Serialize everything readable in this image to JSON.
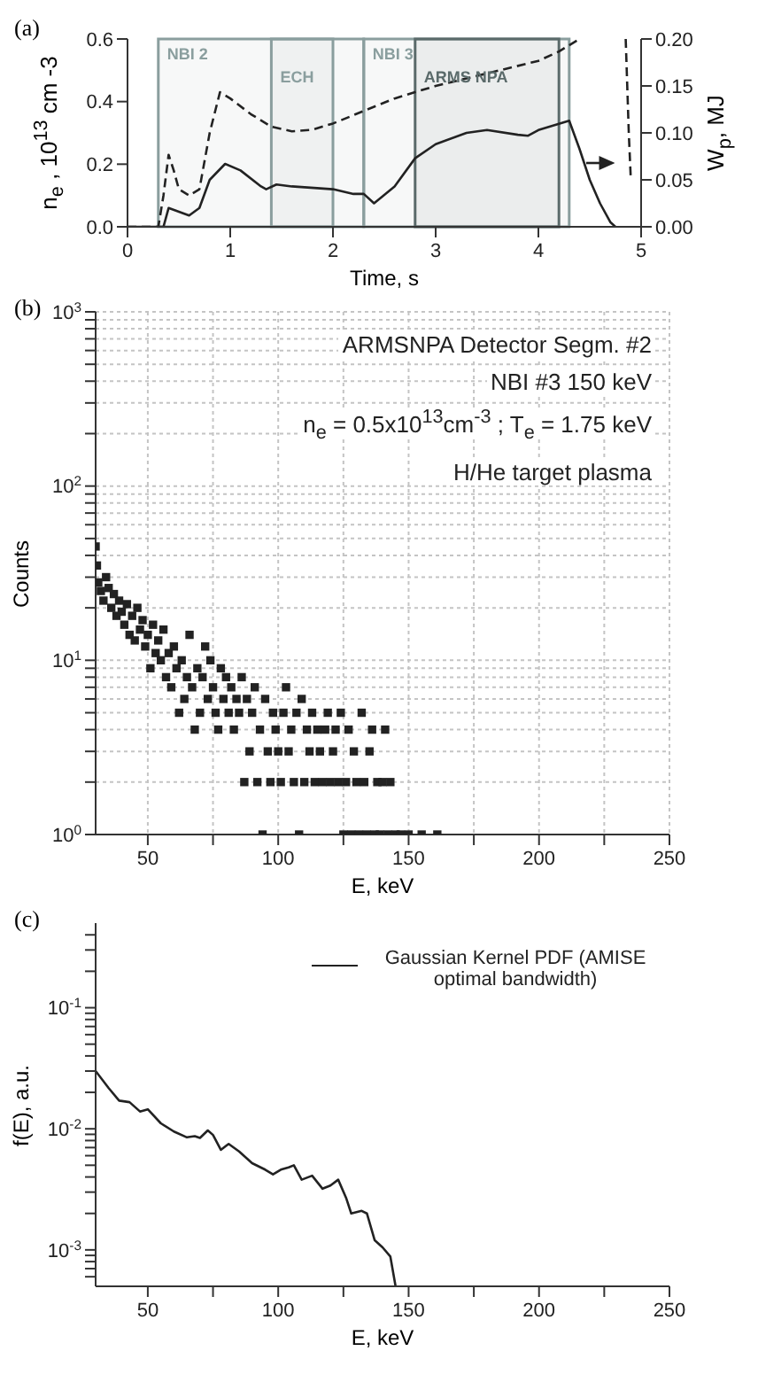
{
  "chart_data": [
    {
      "type": "line",
      "annotations": [
        "(a)"
      ],
      "xlabel": "Time, s",
      "ylabel": "n$_{e}$ , 10$^{13}$ cm -3",
      "y2label": "W$_{p}$, MJ",
      "xlim": [
        0,
        5
      ],
      "xticks": [
        0,
        1,
        2,
        3,
        4,
        5
      ],
      "ylim": [
        0,
        0.6
      ],
      "yticks": [
        {
          "value": 0,
          "label": "0.0"
        },
        0.2,
        0.4,
        0.6
      ],
      "y2lim": [
        0,
        0.2
      ],
      "y2ticks": [
        {
          "value": 0,
          "label": "0.00"
        },
        0.05,
        {
          "value": 0.1,
          "label": "0.10"
        },
        0.15,
        {
          "value": 0.2,
          "label": "0.20"
        }
      ],
      "marker": "none",
      "bands": [
        {
          "axis": "x",
          "from": 0.3,
          "to": 2.3,
          "label": "NBI 2",
          "color": "#8a9e9e"
        },
        {
          "axis": "x",
          "from": 1.4,
          "to": 2.0,
          "label": "ECH",
          "color": "#8a9e9e"
        },
        {
          "axis": "x",
          "from": 2.3,
          "to": 4.3,
          "label": "NBI 3",
          "color": "#8a9e9e"
        },
        {
          "axis": "x",
          "from": 2.8,
          "to": 4.2,
          "label": "ARMS NPA",
          "color": "#5a6a6a"
        }
      ],
      "series": [
        {
          "x": [
            0,
            0.3,
            0.35,
            0.4,
            0.45,
            0.5,
            0.6,
            0.7,
            0.8,
            0.9,
            1.0,
            1.2,
            1.4,
            1.6,
            1.8,
            2.0,
            2.3,
            2.6,
            3.0,
            3.5,
            4.0,
            4.2,
            4.4,
            4.45,
            4.85,
            4.88,
            4.9
          ],
          "values": [
            0,
            0,
            0.1,
            0.23,
            0.18,
            0.12,
            0.1,
            0.12,
            0.3,
            0.43,
            0.41,
            0.36,
            0.32,
            0.305,
            0.31,
            0.33,
            0.37,
            0.41,
            0.45,
            0.49,
            0.53,
            0.56,
            0.6,
            null,
            0.6,
            0.3,
            0.15
          ],
          "color": "#222222",
          "line_style": "dashed"
        },
        {
          "x": [
            0,
            0.35,
            0.4,
            0.6,
            0.7,
            0.8,
            0.95,
            1.1,
            1.3,
            1.35,
            1.45,
            1.6,
            2.0,
            2.2,
            2.3,
            2.4,
            2.6,
            2.8,
            3.0,
            3.3,
            3.5,
            3.8,
            3.9,
            4.0,
            4.3,
            4.4,
            4.5,
            4.6,
            4.7,
            4.75
          ],
          "values": [
            0,
            0,
            0.02,
            0.012,
            0.02,
            0.05,
            0.067,
            0.06,
            0.043,
            0.04,
            0.045,
            0.043,
            0.04,
            0.035,
            0.035,
            0.025,
            0.043,
            0.073,
            0.088,
            0.1,
            0.103,
            0.098,
            0.097,
            0.103,
            0.113,
            0.083,
            0.05,
            0.025,
            0.005,
            0
          ],
          "color": "#222222",
          "line_style": "solid",
          "axis": "y2"
        }
      ]
    },
    {
      "type": "scatter",
      "annotations": [
        "(b)",
        "ARMSNPA Detector Segm. #2",
        "NBI #3 150 keV",
        "n$_{e}$ =  0.5x10$^{13}$cm$^{-3}$ ; T$_{e}$ = 1.75 keV",
        "H/He target plasma"
      ],
      "xlabel": "E, keV",
      "ylabel": "Counts",
      "log": "y",
      "grid": true,
      "marker": "square",
      "xlim": [
        30,
        250
      ],
      "xticks": [
        50,
        {
          "value": 75,
          "label": null
        },
        100,
        {
          "value": 125,
          "label": null
        },
        150,
        {
          "value": 175,
          "label": null
        },
        200,
        {
          "value": 225,
          "label": null
        },
        250
      ],
      "ylim": [
        1,
        1000
      ],
      "yticks": [
        {
          "value": 1,
          "label": "10$^{0}$"
        },
        {
          "value": 2,
          "label": null
        },
        {
          "value": 3,
          "label": null
        },
        {
          "value": 4,
          "label": null
        },
        {
          "value": 5,
          "label": null
        },
        {
          "value": 6,
          "label": null
        },
        {
          "value": 7,
          "label": null
        },
        {
          "value": 8,
          "label": null
        },
        {
          "value": 9,
          "label": null
        },
        {
          "value": 10,
          "label": "10$^{1}$"
        },
        {
          "value": 20,
          "label": null
        },
        {
          "value": 30,
          "label": null
        },
        {
          "value": 40,
          "label": null
        },
        {
          "value": 50,
          "label": null
        },
        {
          "value": 60,
          "label": null
        },
        {
          "value": 70,
          "label": null
        },
        {
          "value": 80,
          "label": null
        },
        {
          "value": 90,
          "label": null
        },
        {
          "value": 100,
          "label": "10$^{2}$"
        },
        {
          "value": 200,
          "label": null
        },
        {
          "value": 300,
          "label": null
        },
        {
          "value": 400,
          "label": null
        },
        {
          "value": 500,
          "label": null
        },
        {
          "value": 600,
          "label": null
        },
        {
          "value": 700,
          "label": null
        },
        {
          "value": 800,
          "label": null
        },
        {
          "value": 900,
          "label": null
        },
        {
          "value": 1000,
          "label": "10$^{3}$"
        }
      ],
      "series": [
        {
          "color": "#222222",
          "x": [
            30,
            30.5,
            31,
            32,
            33,
            34,
            35,
            36,
            37,
            38,
            39,
            40,
            41,
            42,
            43,
            44,
            45,
            46,
            47,
            48,
            49,
            50,
            51,
            52,
            53,
            54,
            55,
            56,
            57,
            58,
            59,
            60,
            61,
            62,
            63,
            64,
            65,
            66,
            67,
            68,
            69,
            70,
            71,
            72,
            73,
            74,
            75,
            76,
            77,
            78,
            79,
            80,
            81,
            82,
            83,
            84,
            85,
            86,
            87,
            88,
            89,
            90,
            91,
            92,
            93,
            94,
            95,
            96,
            97,
            98,
            99,
            100,
            101,
            102,
            103,
            104,
            105,
            106,
            107,
            108,
            109,
            110,
            111,
            112,
            113,
            114,
            115,
            116,
            117,
            118,
            119,
            120,
            121,
            122,
            123,
            124,
            125,
            126,
            127,
            128,
            129,
            130,
            131,
            132,
            133,
            134,
            135,
            136,
            137,
            138,
            139,
            140,
            141,
            142,
            143,
            145,
            147,
            150,
            155,
            161
          ],
          "values": [
            45,
            35,
            28,
            25,
            22,
            30,
            26,
            20,
            24,
            18,
            22,
            19,
            16,
            21,
            14,
            18,
            13,
            20,
            15,
            17,
            12,
            14,
            9,
            16,
            11,
            13,
            10,
            15,
            8,
            11,
            7,
            12,
            9,
            5,
            10,
            6,
            8,
            14,
            7,
            4,
            9,
            5,
            8,
            12,
            6,
            10,
            7,
            5,
            4,
            9,
            6,
            8,
            5,
            7,
            4,
            6,
            5,
            8,
            2,
            6,
            3,
            5,
            7,
            2,
            4,
            1,
            6,
            3,
            2,
            5,
            4,
            3,
            2,
            5,
            7,
            3,
            4,
            2,
            5,
            1,
            6,
            2,
            4,
            3,
            5,
            2,
            4,
            3,
            2,
            4,
            5,
            2,
            3,
            4,
            2,
            5,
            1,
            2,
            4,
            1,
            3,
            2,
            1,
            5,
            2,
            1,
            3,
            4,
            1,
            2,
            1,
            2,
            4,
            1,
            2,
            1,
            1,
            1,
            1,
            1
          ]
        }
      ]
    },
    {
      "type": "line",
      "annotations": [
        "(c)"
      ],
      "xlabel": "E, keV",
      "ylabel": "f(E), a.u.",
      "log": "y",
      "legend": "top right",
      "marker": "none",
      "xlim": [
        30,
        250
      ],
      "xticks": [
        50,
        {
          "value": 75,
          "label": null
        },
        100,
        {
          "value": 125,
          "label": null
        },
        150,
        {
          "value": 175,
          "label": null
        },
        200,
        {
          "value": 225,
          "label": null
        },
        250
      ],
      "ylim": [
        0.0005,
        0.5
      ],
      "yticks": [
        {
          "value": 0.0006,
          "label": null
        },
        {
          "value": 0.0007,
          "label": null
        },
        {
          "value": 0.0008,
          "label": null
        },
        {
          "value": 0.0009,
          "label": null
        },
        {
          "value": 0.001,
          "label": "10$^{-3}$"
        },
        {
          "value": 0.002,
          "label": null
        },
        {
          "value": 0.003,
          "label": null
        },
        {
          "value": 0.004,
          "label": null
        },
        {
          "value": 0.005,
          "label": null
        },
        {
          "value": 0.006,
          "label": null
        },
        {
          "value": 0.007,
          "label": null
        },
        {
          "value": 0.008,
          "label": null
        },
        {
          "value": 0.009,
          "label": null
        },
        {
          "value": 0.01,
          "label": "10$^{-2}$"
        },
        {
          "value": 0.02,
          "label": null
        },
        {
          "value": 0.03,
          "label": null
        },
        {
          "value": 0.04,
          "label": null
        },
        {
          "value": 0.05,
          "label": null
        },
        {
          "value": 0.06,
          "label": null
        },
        {
          "value": 0.07,
          "label": null
        },
        {
          "value": 0.08,
          "label": null
        },
        {
          "value": 0.09,
          "label": null
        },
        {
          "value": 0.1,
          "label": "10$^{-1}$"
        },
        {
          "value": 0.2,
          "label": null
        },
        {
          "value": 0.3,
          "label": null
        },
        {
          "value": 0.4,
          "label": null
        }
      ],
      "series": [
        {
          "name": "Gaussian Kernel PDF (AMISE optimal bandwidth)",
          "color": "#222222",
          "line_style": "solid",
          "x": [
            30,
            35,
            39,
            43,
            47,
            50,
            55,
            60,
            65,
            68,
            70,
            73,
            75,
            78,
            81,
            85,
            90,
            95,
            98,
            101,
            104,
            106,
            109,
            113,
            117,
            120,
            123,
            126,
            128,
            132,
            134,
            137,
            140,
            143,
            145
          ],
          "values": [
            0.03,
            0.0217,
            0.0171,
            0.0166,
            0.0139,
            0.0145,
            0.0111,
            0.0095,
            0.0085,
            0.0087,
            0.0084,
            0.0097,
            0.0089,
            0.0067,
            0.0075,
            0.0065,
            0.0052,
            0.0046,
            0.0042,
            0.0046,
            0.0048,
            0.005,
            0.0038,
            0.0041,
            0.0032,
            0.0034,
            0.0038,
            0.0027,
            0.002,
            0.0021,
            0.002,
            0.0012,
            0.00105,
            0.00088,
            0.0005
          ]
        }
      ]
    }
  ]
}
